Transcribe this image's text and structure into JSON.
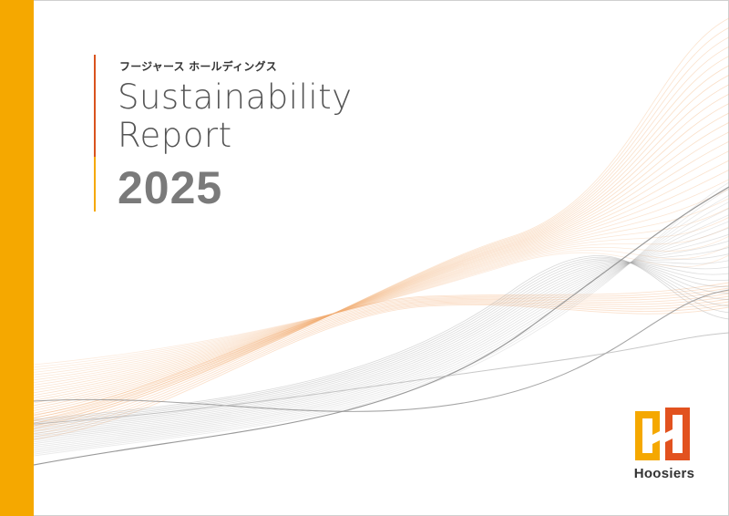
{
  "cover": {
    "company_name": "フージャース ホールディングス",
    "title_line1": "Sustainability",
    "title_line2": "Report",
    "year": "2025",
    "brand": "Hoosiers"
  },
  "colors": {
    "accent_orange": "#f5a800",
    "accent_red": "#d9531e",
    "wave_gray": "#a9a9a9",
    "wave_orange": "#f3b27a"
  },
  "icons": {
    "logo_mark": "hoosiers-h-logo-icon"
  }
}
